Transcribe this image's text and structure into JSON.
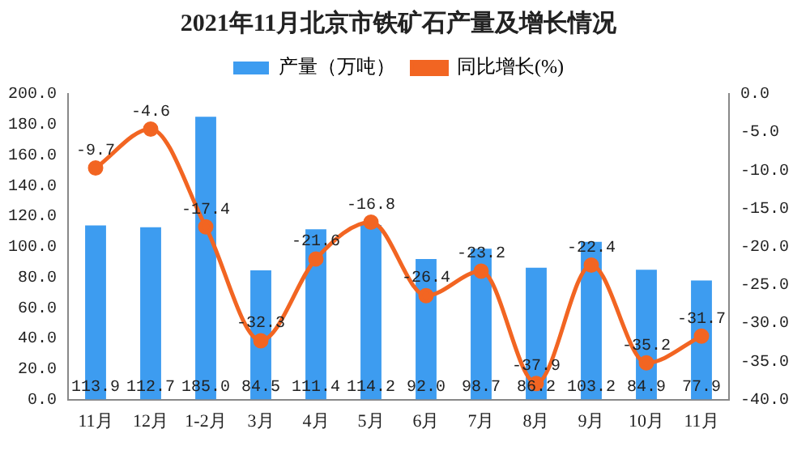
{
  "chart_data": {
    "type": "bar",
    "title": "2021年11月北京市铁矿石产量及增长情况",
    "categories": [
      "11月",
      "12月",
      "1-2月",
      "3月",
      "4月",
      "5月",
      "6月",
      "7月",
      "8月",
      "9月",
      "10月",
      "11月"
    ],
    "series": [
      {
        "name": "产量（万吨）",
        "color": "#3d9cf0",
        "values": [
          113.9,
          112.7,
          185.0,
          84.5,
          111.4,
          114.2,
          92.0,
          98.7,
          86.2,
          103.2,
          84.9,
          77.9
        ],
        "value_labels": [
          "113.9",
          "112.7",
          "185.0",
          "84.5",
          "111.4",
          "114.2",
          "92.0",
          "98.7",
          "86.2",
          "103.2",
          "84.9",
          "77.9"
        ]
      },
      {
        "name": "同比增长(%)",
        "type": "line",
        "axis": "y2",
        "color": "#f26522",
        "values": [
          -9.7,
          -4.6,
          -17.4,
          -32.3,
          -21.6,
          -16.8,
          -26.4,
          -23.2,
          -37.9,
          -22.4,
          -35.2,
          -31.7
        ],
        "value_labels": [
          "-9.7",
          "-4.6",
          "-17.4",
          "-32.3",
          "-21.6",
          "-16.8",
          "-26.4",
          "-23.2",
          "-37.9",
          "-22.4",
          "-35.2",
          "-31.7"
        ]
      }
    ],
    "ylim": [
      0,
      200
    ],
    "yticks": [
      {
        "value": 0,
        "label": "0.0"
      },
      {
        "value": 20,
        "label": "20.0"
      },
      {
        "value": 40,
        "label": "40.0"
      },
      {
        "value": 60,
        "label": "60.0"
      },
      {
        "value": 80,
        "label": "80.0"
      },
      {
        "value": 100,
        "label": "100.0"
      },
      {
        "value": 120,
        "label": "120.0"
      },
      {
        "value": 140,
        "label": "140.0"
      },
      {
        "value": 160,
        "label": "160.0"
      },
      {
        "value": 180,
        "label": "180.0"
      },
      {
        "value": 200,
        "label": "200.0"
      }
    ],
    "y2lim": [
      -40,
      0
    ],
    "y2ticks": [
      {
        "value": -40,
        "label": "-40.0"
      },
      {
        "value": -35,
        "label": "-35.0"
      },
      {
        "value": -30,
        "label": "-30.0"
      },
      {
        "value": -25,
        "label": "-25.0"
      },
      {
        "value": -20,
        "label": "-20.0"
      },
      {
        "value": -15,
        "label": "-15.0"
      },
      {
        "value": -10,
        "label": "-10.0"
      },
      {
        "value": -5,
        "label": "-5.0"
      },
      {
        "value": 0,
        "label": "0.0"
      }
    ],
    "legend": "top",
    "grid": false,
    "marker": "circle",
    "line_style": "solid"
  }
}
